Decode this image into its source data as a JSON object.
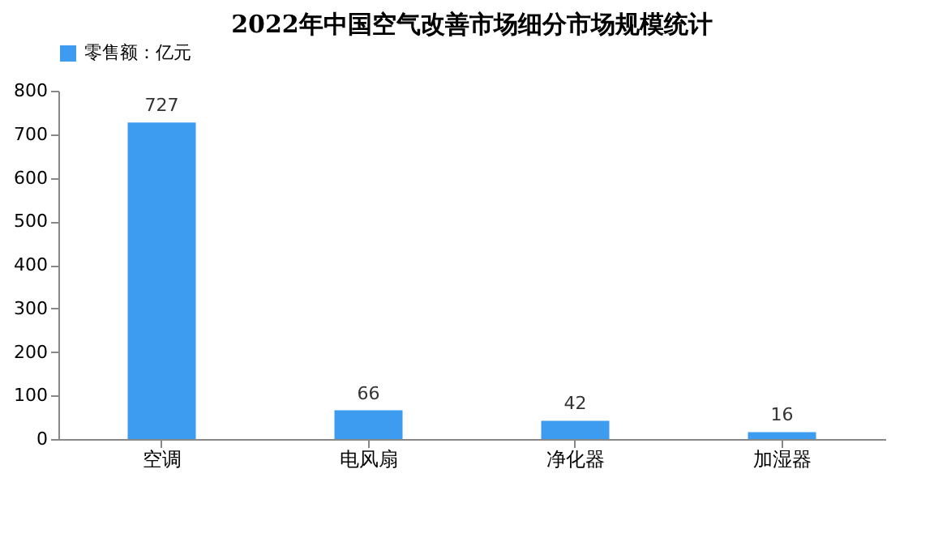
{
  "chart_data": {
    "type": "bar",
    "title": "2022年中国空气改善市场细分市场规模统计",
    "categories": [
      "空调",
      "电风扇",
      "净化器",
      "加湿器"
    ],
    "series": [
      {
        "name": "零售额：亿元",
        "color": "#3d9cf0",
        "values": [
          727,
          66,
          42,
          16
        ]
      }
    ],
    "ylim": [
      0,
      800
    ],
    "yticks": [
      0,
      100,
      200,
      300,
      400,
      500,
      600,
      700,
      800
    ],
    "grid": false,
    "legend": "top",
    "data_labels": true
  }
}
